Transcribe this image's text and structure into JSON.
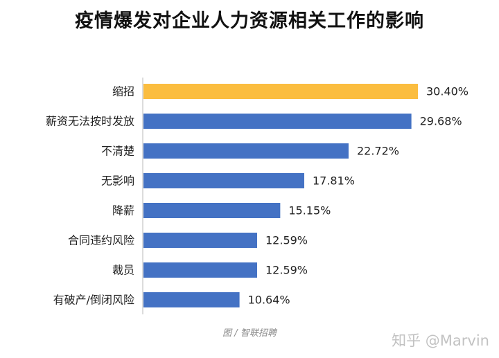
{
  "chart_data": {
    "type": "bar",
    "orientation": "horizontal",
    "title": "疫情爆发对企业人力资源相关工作的影响",
    "categories": [
      "缩招",
      "薪资无法按时发放",
      "不清楚",
      "无影响",
      "降薪",
      "合同违约风险",
      "裁员",
      "有破产/倒闭风险"
    ],
    "values": [
      30.4,
      29.68,
      22.72,
      17.81,
      15.15,
      12.59,
      12.59,
      10.64
    ],
    "value_labels": [
      "30.40%",
      "29.68%",
      "22.72%",
      "17.81%",
      "15.15%",
      "12.59%",
      "12.59%",
      "10.64%"
    ],
    "highlight_index": 0,
    "colors": {
      "bar": "#4472c4",
      "highlight": "#fbbd3f",
      "axis": "#d0d0d0"
    },
    "xlim": [
      0,
      30.4
    ],
    "grid": false,
    "legend": false
  },
  "source": "图 / 智联招聘",
  "watermark": "知乎 @Marvin"
}
